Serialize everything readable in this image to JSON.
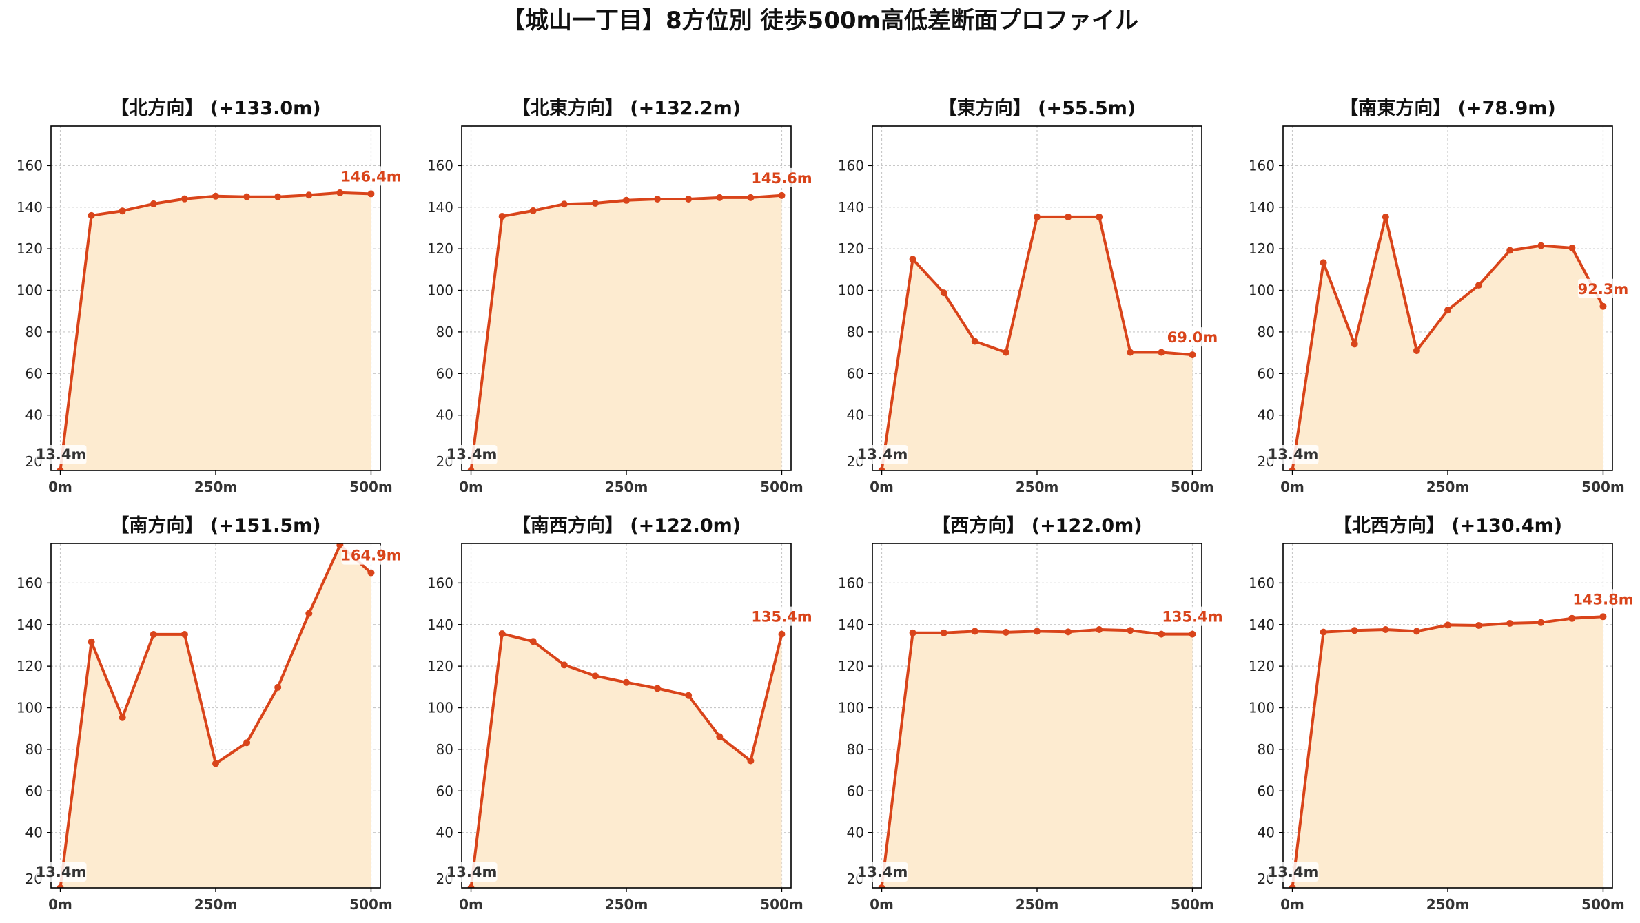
{
  "figure": {
    "title": "【城山一丁目】8方位別 徒歩500m高低差断面プロファイル"
  },
  "style": {
    "line_color": "#d9441a",
    "fill_color": "#fdebd0",
    "grid_color": "#c8c8c8",
    "start_label_color": "#333333",
    "end_label_color": "#d9441a",
    "axis_color": "#000000"
  },
  "chart_data": [
    {
      "type": "area",
      "title": "【北方向】 (+133.0m)",
      "x": [
        0,
        50,
        100,
        150,
        200,
        250,
        300,
        350,
        400,
        450,
        500
      ],
      "values": [
        13.4,
        136.0,
        138.2,
        141.6,
        144.0,
        145.3,
        145.0,
        145.0,
        145.8,
        146.9,
        146.4
      ],
      "start_label": "13.4m",
      "end_label": "146.4m",
      "xticks": [
        0,
        250,
        500
      ],
      "xtick_labels": [
        "0m",
        "250m",
        "500m"
      ],
      "yticks": [
        40,
        60,
        80,
        100,
        120,
        140,
        160
      ],
      "ylim": [
        13.4,
        179
      ],
      "xlim": [
        -15,
        515
      ],
      "grid": true
    },
    {
      "type": "area",
      "title": "【北東方向】 (+132.2m)",
      "x": [
        0,
        50,
        100,
        150,
        200,
        250,
        300,
        350,
        400,
        450,
        500
      ],
      "values": [
        13.4,
        135.6,
        138.3,
        141.5,
        141.9,
        143.3,
        143.9,
        143.9,
        144.6,
        144.6,
        145.6
      ],
      "start_label": "13.4m",
      "end_label": "145.6m",
      "xticks": [
        0,
        250,
        500
      ],
      "xtick_labels": [
        "0m",
        "250m",
        "500m"
      ],
      "yticks": [
        40,
        60,
        80,
        100,
        120,
        140,
        160
      ],
      "ylim": [
        13.4,
        179
      ],
      "xlim": [
        -15,
        515
      ],
      "grid": true
    },
    {
      "type": "area",
      "title": "【東方向】 (+55.5m)",
      "x": [
        0,
        50,
        100,
        150,
        200,
        250,
        300,
        350,
        400,
        450,
        500
      ],
      "values": [
        13.4,
        115.0,
        98.8,
        75.5,
        70.2,
        135.3,
        135.3,
        135.3,
        70.2,
        70.2,
        69.0
      ],
      "start_label": "13.4m",
      "end_label": "69.0m",
      "xticks": [
        0,
        250,
        500
      ],
      "xtick_labels": [
        "0m",
        "250m",
        "500m"
      ],
      "yticks": [
        40,
        60,
        80,
        100,
        120,
        140,
        160
      ],
      "ylim": [
        13.4,
        179
      ],
      "xlim": [
        -15,
        515
      ],
      "grid": true
    },
    {
      "type": "area",
      "title": "【南東方向】 (+78.9m)",
      "x": [
        0,
        50,
        100,
        150,
        200,
        250,
        300,
        350,
        400,
        450,
        500
      ],
      "values": [
        13.4,
        113.3,
        74.2,
        135.3,
        71.0,
        90.5,
        102.5,
        119.2,
        121.5,
        120.4,
        92.3
      ],
      "start_label": "13.4m",
      "end_label": "92.3m",
      "xticks": [
        0,
        250,
        500
      ],
      "xtick_labels": [
        "0m",
        "250m",
        "500m"
      ],
      "yticks": [
        40,
        60,
        80,
        100,
        120,
        140,
        160
      ],
      "ylim": [
        13.4,
        179
      ],
      "xlim": [
        -15,
        515
      ],
      "grid": true
    },
    {
      "type": "area",
      "title": "【南方向】 (+151.5m)",
      "x": [
        0,
        50,
        100,
        150,
        200,
        250,
        300,
        350,
        400,
        450,
        500
      ],
      "values": [
        13.4,
        131.7,
        95.3,
        135.3,
        135.3,
        73.2,
        83.2,
        109.8,
        145.3,
        178.2,
        164.9
      ],
      "start_label": "13.4m",
      "end_label": "164.9m",
      "xticks": [
        0,
        250,
        500
      ],
      "xtick_labels": [
        "0m",
        "250m",
        "500m"
      ],
      "yticks": [
        40,
        60,
        80,
        100,
        120,
        140,
        160
      ],
      "ylim": [
        13.4,
        179
      ],
      "xlim": [
        -15,
        515
      ],
      "grid": true
    },
    {
      "type": "area",
      "title": "【南西方向】 (+122.0m)",
      "x": [
        0,
        50,
        100,
        150,
        200,
        250,
        300,
        350,
        400,
        450,
        500
      ],
      "values": [
        13.4,
        135.6,
        131.9,
        120.6,
        115.3,
        112.2,
        109.3,
        105.9,
        86.1,
        74.5,
        135.4
      ],
      "start_label": "13.4m",
      "end_label": "135.4m",
      "xticks": [
        0,
        250,
        500
      ],
      "xtick_labels": [
        "0m",
        "250m",
        "500m"
      ],
      "yticks": [
        40,
        60,
        80,
        100,
        120,
        140,
        160
      ],
      "ylim": [
        13.4,
        179
      ],
      "xlim": [
        -15,
        515
      ],
      "grid": true
    },
    {
      "type": "area",
      "title": "【西方向】 (+122.0m)",
      "x": [
        0,
        50,
        100,
        150,
        200,
        250,
        300,
        350,
        400,
        450,
        500
      ],
      "values": [
        13.4,
        136.0,
        136.0,
        136.8,
        136.3,
        136.8,
        136.5,
        137.6,
        137.2,
        135.4,
        135.4
      ],
      "start_label": "13.4m",
      "end_label": "135.4m",
      "xticks": [
        0,
        250,
        500
      ],
      "xtick_labels": [
        "0m",
        "250m",
        "500m"
      ],
      "yticks": [
        40,
        60,
        80,
        100,
        120,
        140,
        160
      ],
      "ylim": [
        13.4,
        179
      ],
      "xlim": [
        -15,
        515
      ],
      "grid": true
    },
    {
      "type": "area",
      "title": "【北西方向】 (+130.4m)",
      "x": [
        0,
        50,
        100,
        150,
        200,
        250,
        300,
        350,
        400,
        450,
        500
      ],
      "values": [
        13.4,
        136.4,
        137.2,
        137.6,
        136.8,
        139.8,
        139.6,
        140.6,
        141.0,
        143.0,
        143.8
      ],
      "start_label": "13.4m",
      "end_label": "143.8m",
      "xticks": [
        0,
        250,
        500
      ],
      "xtick_labels": [
        "0m",
        "250m",
        "500m"
      ],
      "yticks": [
        40,
        60,
        80,
        100,
        120,
        140,
        160
      ],
      "ylim": [
        13.4,
        179
      ],
      "xlim": [
        -15,
        515
      ],
      "grid": true
    }
  ]
}
